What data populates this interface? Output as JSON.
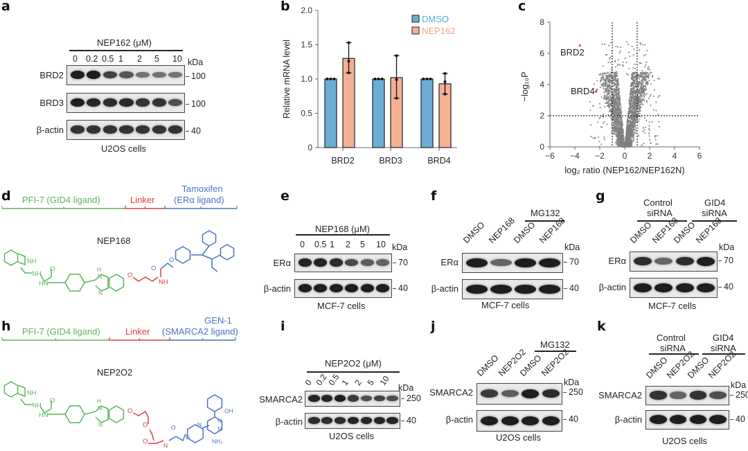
{
  "panels": {
    "a": {
      "label": "a",
      "treatment_header": "NEP162 (μM)",
      "lanes": [
        "0",
        "0.2",
        "0.5",
        "1",
        "2",
        "5",
        "10"
      ],
      "kda_label": "kDa",
      "rows": [
        {
          "name": "BRD2",
          "kda": "100",
          "intensities": [
            1.0,
            1.0,
            0.75,
            0.6,
            0.4,
            0.4,
            0.4
          ]
        },
        {
          "name": "BRD3",
          "kda": "100",
          "intensities": [
            1.0,
            0.95,
            0.9,
            0.92,
            0.85,
            0.85,
            0.65
          ]
        },
        {
          "name": "β-actin",
          "kda": "40",
          "intensities": [
            0.85,
            0.85,
            0.85,
            0.85,
            0.85,
            0.85,
            0.85
          ]
        }
      ],
      "cell_line": "U2OS cells"
    },
    "b": {
      "label": "b"
    },
    "c": {
      "label": "c"
    },
    "d": {
      "label": "d",
      "segments": [
        {
          "text": "PFI-7 (GID4 ligand)",
          "color": "#5bb35b"
        },
        {
          "text": "Linker",
          "color": "#e33b3b"
        },
        {
          "text_line1": "Tamoxifen",
          "text_line2": "(ERα ligand)",
          "color": "#4a72c4"
        }
      ],
      "compound": "NEP168",
      "atom_labels": {
        "nh_indole": "NH",
        "nh_amine": "NH",
        "o_carbonyl": "O",
        "hn_amide": "HN",
        "h_benz": "H",
        "n_benz": "N",
        "n_benz2": "N",
        "o_ether": "O",
        "nh_linker": "NH",
        "o_blue_carbonyl": "O",
        "o_blue_ether": "O"
      }
    },
    "e": {
      "label": "e",
      "treatment_header": "NEP168 (μM)",
      "lanes": [
        "0",
        "0.5",
        "1",
        "2",
        "5",
        "10"
      ],
      "kda_label": "kDa",
      "rows": [
        {
          "name": "ERα",
          "kda": "70",
          "intensities": [
            0.95,
            0.95,
            0.9,
            0.7,
            0.55,
            0.5
          ]
        },
        {
          "name": "β-actin",
          "kda": "40",
          "intensities": [
            1.0,
            1.0,
            1.0,
            1.0,
            1.0,
            1.0
          ]
        }
      ],
      "cell_line": "MCF-7 cells"
    },
    "f": {
      "label": "f",
      "group_header": "MG132",
      "lanes": [
        "DMSO",
        "NEP168",
        "DMSO",
        "NEP168"
      ],
      "kda_label": "kDa",
      "rows": [
        {
          "name": "ERα",
          "kda": "70",
          "intensities": [
            1.0,
            0.5,
            1.0,
            1.0
          ]
        },
        {
          "name": "β-actin",
          "kda": "40",
          "intensities": [
            1.0,
            1.0,
            1.0,
            1.0
          ]
        }
      ],
      "cell_line": "MCF-7 cells"
    },
    "g": {
      "label": "g",
      "groups": [
        {
          "line1": "Control",
          "line2": "siRNA"
        },
        {
          "line1": "GID4",
          "line2": "siRNA"
        }
      ],
      "lanes": [
        "DMSO",
        "NEP168",
        "DMSO",
        "NEP168"
      ],
      "kda_label": "kDa",
      "rows": [
        {
          "name": "ERα",
          "kda": "70",
          "intensities": [
            0.9,
            0.5,
            0.9,
            1.0
          ]
        },
        {
          "name": "β-actin",
          "kda": "40",
          "intensities": [
            1.0,
            1.0,
            1.0,
            1.0
          ]
        }
      ],
      "cell_line": "MCF-7 cells"
    },
    "h": {
      "label": "h",
      "segments": [
        {
          "text": "PFI-7 (GID4 ligand)",
          "color": "#5bb35b"
        },
        {
          "text": "Linker",
          "color": "#e33b3b"
        },
        {
          "text_line1": "GEN-1",
          "text_line2": "(SMARCA2 ligand)",
          "color": "#4a72c4"
        }
      ],
      "compound": "NEP2O2",
      "atom_labels": {
        "nh_indole": "NH",
        "nh_amine": "NH",
        "o_carbonyl": "O",
        "hn_amide": "HN",
        "h_benz": "H",
        "n_benz": "N",
        "o1": "O",
        "o2": "O",
        "o3": "O",
        "nh_linker": "N",
        "h_linker": "H",
        "o_blue_carbonyl": "O",
        "n_pip1": "N",
        "n_pip2": "N",
        "oh": "OH",
        "n_pyr1": "N",
        "n_pyr2": "N",
        "nh2": "NH₂"
      }
    },
    "i": {
      "label": "i",
      "treatment_header": "NEP2O2 (μM)",
      "lanes": [
        "0",
        "0.2",
        "0.5",
        "1",
        "2",
        "5",
        "10"
      ],
      "kda_label": "kDa",
      "rows": [
        {
          "name": "SMARCA2",
          "kda": "250",
          "intensities": [
            0.95,
            0.95,
            1.0,
            0.8,
            0.65,
            0.75,
            0.65
          ]
        },
        {
          "name": "β-actin",
          "kda": "40",
          "intensities": [
            0.9,
            0.9,
            0.9,
            0.95,
            0.95,
            0.95,
            0.95
          ]
        }
      ],
      "cell_line": "U2OS cells"
    },
    "j": {
      "label": "j",
      "group_header": "MG132",
      "lanes": [
        "DMSO",
        "NEP2O2",
        "DMSO",
        "NEP2O2"
      ],
      "kda_label": "kDa",
      "rows": [
        {
          "name": "SMARCA2",
          "kda": "250",
          "intensities": [
            0.8,
            0.55,
            1.0,
            0.9
          ]
        },
        {
          "name": "β-actin",
          "kda": "40",
          "intensities": [
            1.0,
            1.0,
            1.0,
            1.0
          ]
        }
      ],
      "cell_line": "U2OS cells"
    },
    "k": {
      "label": "k",
      "groups": [
        {
          "line1": "Control",
          "line2": "siRNA"
        },
        {
          "line1": "GID4",
          "line2": "siRNA"
        }
      ],
      "lanes": [
        "DMSO",
        "NEP2O2",
        "DMSO",
        "NEP2O2"
      ],
      "kda_label": "kDa",
      "rows": [
        {
          "name": "SMARCA2",
          "kda": "250",
          "intensities": [
            0.85,
            0.5,
            0.85,
            0.65
          ]
        },
        {
          "name": "β-actin",
          "kda": "40",
          "intensities": [
            1.0,
            1.0,
            1.0,
            1.0
          ]
        }
      ],
      "cell_line": "U2OS cells"
    }
  },
  "chart_data": [
    {
      "panel": "b",
      "type": "bar",
      "title": "",
      "xlabel": "",
      "ylabel": "Relative mRNA level",
      "ylim": [
        0,
        2.0
      ],
      "yticks": [
        "0",
        "0.5",
        "1.0",
        "1.5",
        "2.0"
      ],
      "categories": [
        "BRD2",
        "BRD3",
        "BRD4"
      ],
      "legend_position": "top-right",
      "series": [
        {
          "name": "DMSO",
          "color": "#6aaed6",
          "values": [
            1.0,
            1.0,
            1.0
          ],
          "points": [
            [
              1.0,
              1.0,
              1.0
            ],
            [
              1.0,
              1.0,
              1.0
            ],
            [
              1.0,
              1.0,
              1.0
            ]
          ],
          "error": [
            0,
            0,
            0
          ]
        },
        {
          "name": "NEP162",
          "color": "#f4b094",
          "values": [
            1.3,
            1.02,
            0.93
          ],
          "points": [
            [
              1.53,
              1.26,
              1.09
            ],
            [
              1.34,
              0.99,
              0.72
            ],
            [
              1.08,
              0.96,
              0.78
            ]
          ],
          "error": [
            0.23,
            0.31,
            0.15
          ]
        }
      ]
    },
    {
      "panel": "c",
      "type": "scatter",
      "title": "",
      "xlabel": "log₂ ratio (NEP162/NEP162N)",
      "ylabel": "−log₁₀P",
      "xlim": [
        -6,
        6
      ],
      "ylim": [
        0,
        8
      ],
      "xticks": [
        "−6",
        "−4",
        "−2",
        "0",
        "2",
        "4",
        "6"
      ],
      "yticks": [
        "0",
        "2",
        "4",
        "6",
        "8"
      ],
      "thresholds": {
        "x": [
          -1,
          1
        ],
        "y": 2
      },
      "highlighted": [
        {
          "name": "BRD2",
          "x": -3.6,
          "y": 6.5,
          "color": "#e33b3b"
        },
        {
          "name": "BRD4",
          "x": -2.3,
          "y": 3.55,
          "color": "#e33b3b"
        }
      ],
      "point_color": "#808080",
      "description": "Volcano plot; dense V-shaped cloud centered at x=0 extending to y≈6.8"
    }
  ]
}
